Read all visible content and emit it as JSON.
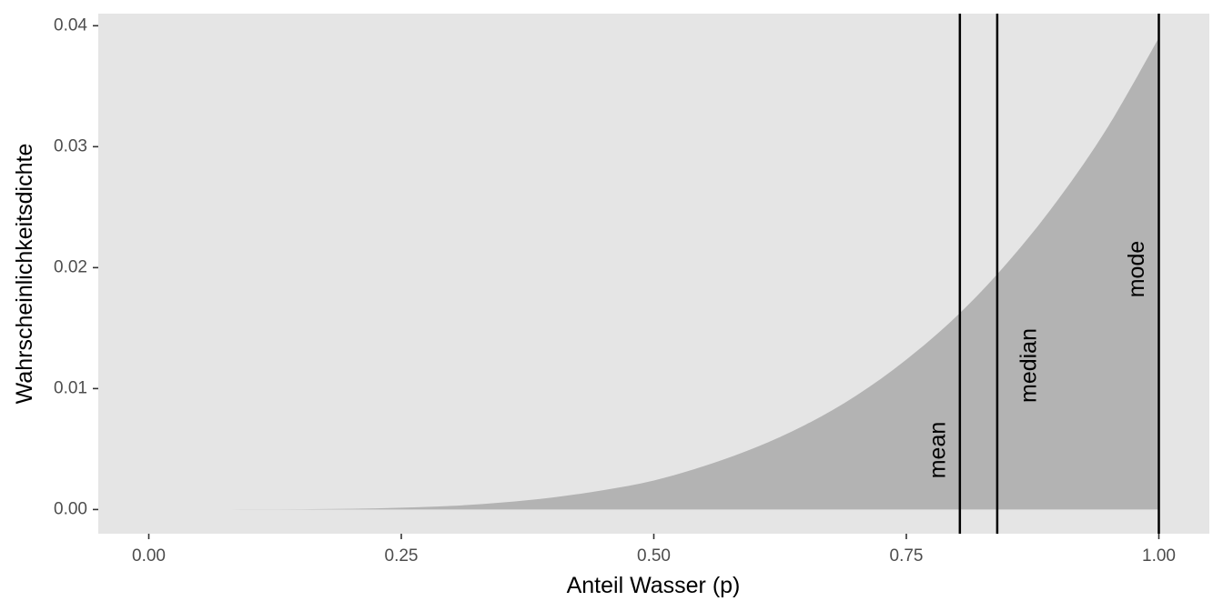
{
  "chart_data": {
    "type": "area",
    "title": "",
    "xlabel": "Anteil Wasser (p)",
    "ylabel": "Wahrscheinlichkeitsdichte",
    "xlim": [
      -0.05,
      1.05
    ],
    "ylim": [
      -0.002,
      0.041
    ],
    "x_ticks": [
      0.0,
      0.25,
      0.5,
      0.75,
      1.0
    ],
    "x_tick_labels": [
      "0.00",
      "0.25",
      "0.50",
      "0.75",
      "1.00"
    ],
    "y_ticks": [
      0.0,
      0.01,
      0.02,
      0.03,
      0.04
    ],
    "y_tick_labels": [
      "0.00",
      "0.01",
      "0.02",
      "0.03",
      "0.04"
    ],
    "grid": false,
    "density": {
      "x": [
        0.0,
        0.05,
        0.1,
        0.15,
        0.2,
        0.25,
        0.3,
        0.35,
        0.4,
        0.45,
        0.5,
        0.55,
        0.6,
        0.65,
        0.7,
        0.75,
        0.8,
        0.85,
        0.9,
        0.95,
        1.0
      ],
      "y": [
        0.0,
        0.0,
        1e-05,
        2e-05,
        6e-05,
        0.00015,
        0.0003,
        0.00058,
        0.001,
        0.0016,
        0.0024,
        0.0036,
        0.0051,
        0.007,
        0.0094,
        0.0124,
        0.016,
        0.0204,
        0.0256,
        0.0317,
        0.039
      ]
    },
    "fill_color": "#b3b3b3",
    "panel_color": "#e5e5e5",
    "vlines": [
      {
        "label": "mean",
        "x": 0.803
      },
      {
        "label": "median",
        "x": 0.84
      },
      {
        "label": "mode",
        "x": 1.0
      }
    ]
  }
}
